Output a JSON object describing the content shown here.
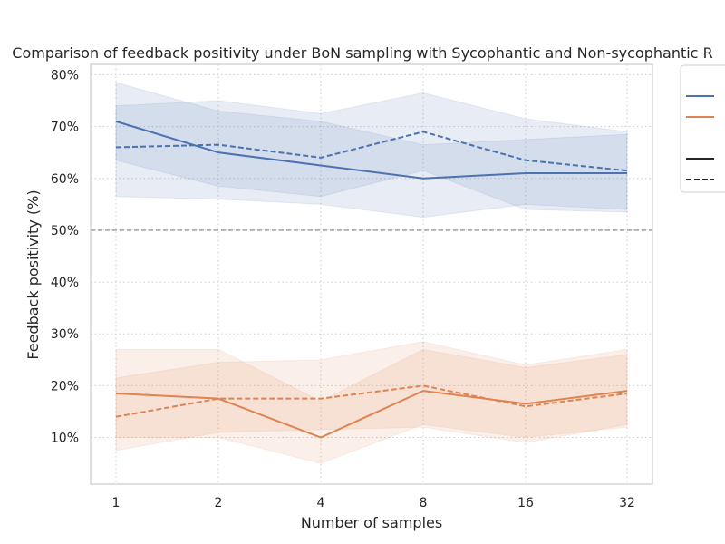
{
  "chart_data": {
    "type": "line",
    "title": "Comparison of feedback positivity under BoN sampling with Sycophantic and Non-sycophantic R",
    "xlabel": "Number of samples",
    "ylabel": "Feedback positivity (%)",
    "x": [
      1,
      2,
      4,
      8,
      16,
      32
    ],
    "x_tick_labels": [
      "1",
      "2",
      "4",
      "8",
      "16",
      "32"
    ],
    "x_scale": "log2",
    "ylim": [
      1,
      82
    ],
    "y_ticks": [
      10,
      20,
      30,
      40,
      50,
      60,
      70,
      80
    ],
    "y_tick_labels": [
      "10%",
      "20%",
      "30%",
      "40%",
      "50%",
      "60%",
      "70%",
      "80%"
    ],
    "grid": true,
    "reference_line": {
      "y": 50,
      "style": "dashed",
      "color": "#808080"
    },
    "legend_placement": "top-right (cropped)",
    "colors": {
      "blue": "#4c72b0",
      "orange": "#dd8452"
    },
    "series": [
      {
        "color": "#4c72b0",
        "style": "solid",
        "values": [
          71.0,
          65.0,
          62.5,
          60.0,
          61.0,
          61.0
        ],
        "lower": [
          63.5,
          58.5,
          56.5,
          61.5,
          54.0,
          53.5
        ],
        "upper": [
          78.5,
          73.0,
          71.0,
          66.5,
          67.5,
          68.5
        ]
      },
      {
        "color": "#4c72b0",
        "style": "dashed",
        "values": [
          66.0,
          66.5,
          64.0,
          69.0,
          63.5,
          61.5
        ],
        "lower": [
          56.5,
          56.0,
          55.0,
          52.5,
          55.0,
          54.0
        ],
        "upper": [
          74.0,
          75.0,
          72.5,
          76.5,
          71.5,
          69.0
        ]
      },
      {
        "color": "#dd8452",
        "style": "solid",
        "values": [
          18.5,
          17.5,
          10.0,
          19.0,
          16.5,
          19.0
        ],
        "lower": [
          10.0,
          10.0,
          5.0,
          12.5,
          10.0,
          12.0
        ],
        "upper": [
          27.0,
          27.0,
          17.0,
          27.0,
          23.5,
          26.0
        ]
      },
      {
        "color": "#dd8452",
        "style": "dashed",
        "values": [
          14.0,
          17.5,
          17.5,
          20.0,
          16.0,
          18.5
        ],
        "lower": [
          7.5,
          11.0,
          11.5,
          12.0,
          9.0,
          12.5
        ],
        "upper": [
          21.5,
          24.5,
          25.0,
          28.5,
          24.0,
          27.0
        ]
      }
    ],
    "legend": {
      "entries": [
        {
          "color": "#4c72b0",
          "style": "solid"
        },
        {
          "color": "#dd8452",
          "style": "solid"
        },
        {
          "color": "#262626",
          "style": "solid"
        },
        {
          "color": "#262626",
          "style": "dashed"
        }
      ]
    }
  }
}
